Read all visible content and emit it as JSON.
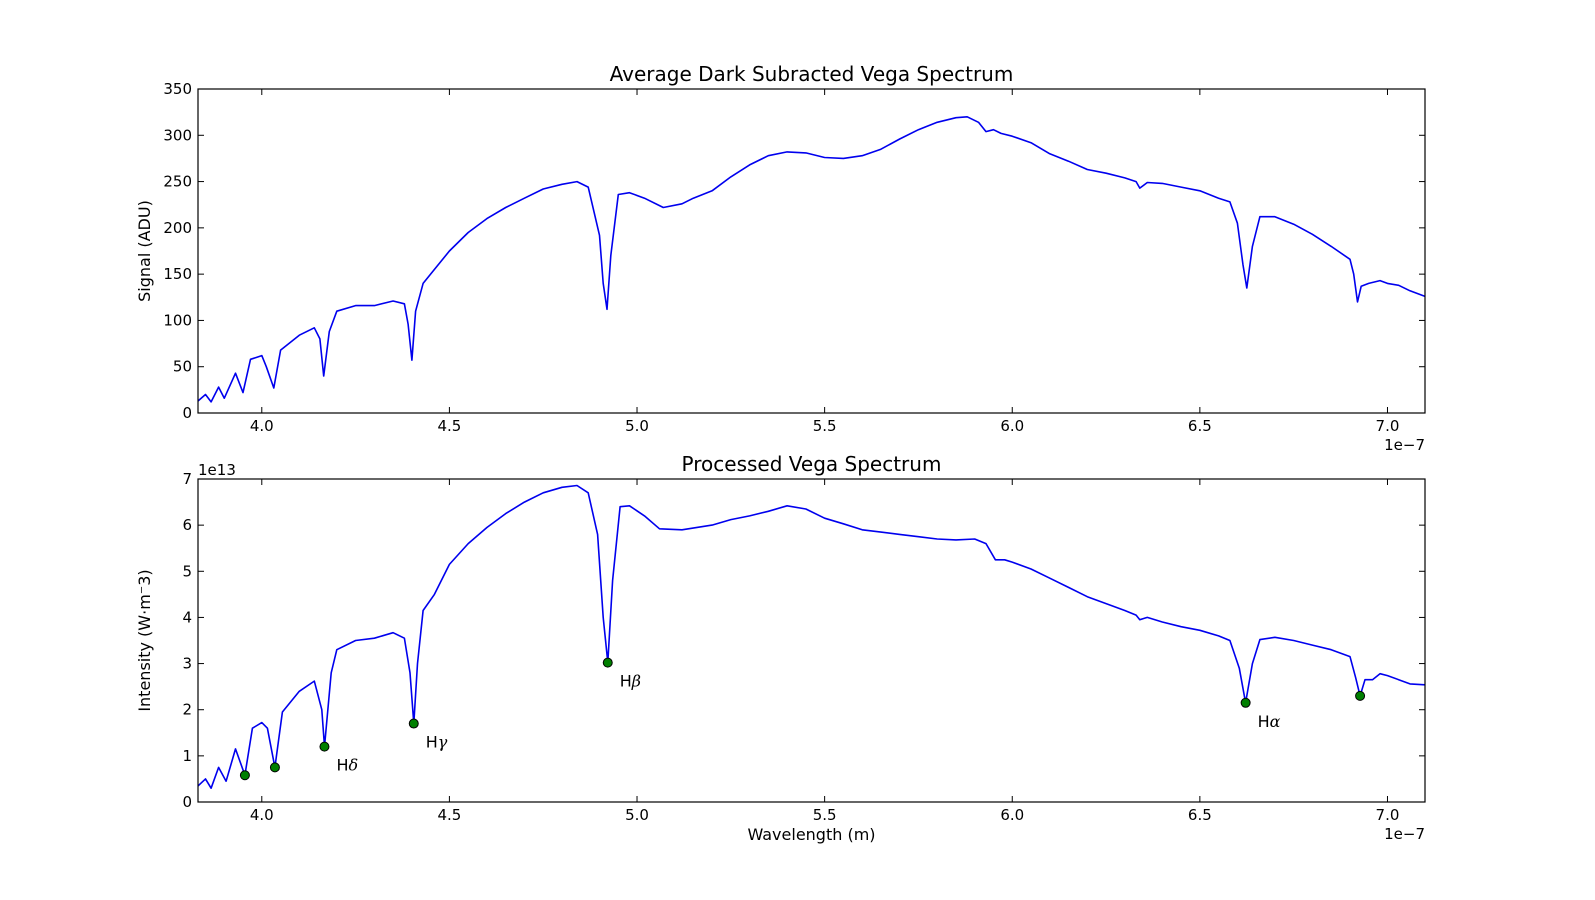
{
  "chart_data": [
    {
      "type": "line",
      "title": "Average Dark Subracted Vega Spectrum",
      "xlabel": "",
      "ylabel": "Signal (ADU)",
      "xlim": [
        3.83e-07,
        7.1e-07
      ],
      "ylim": [
        0,
        350
      ],
      "x_ticks": [
        4e-07,
        4.5e-07,
        5e-07,
        5.5e-07,
        6e-07,
        6.5e-07,
        7e-07
      ],
      "x_tick_labels": [
        "4.0",
        "4.5",
        "5.0",
        "5.5",
        "6.0",
        "6.5",
        "7.0"
      ],
      "x_offset_label": "1e−7",
      "y_ticks": [
        0,
        50,
        100,
        150,
        200,
        250,
        300,
        350
      ],
      "y_tick_labels": [
        "0",
        "50",
        "100",
        "150",
        "200",
        "250",
        "300",
        "350"
      ],
      "y_offset_label": "",
      "grid": false,
      "series": [
        {
          "color": "#0000ee",
          "points": [
            [
              3.83e-07,
              13
            ],
            [
              3.85e-07,
              20
            ],
            [
              3.865e-07,
              12
            ],
            [
              3.885e-07,
              28
            ],
            [
              3.9e-07,
              16
            ],
            [
              3.93e-07,
              43
            ],
            [
              3.95e-07,
              22
            ],
            [
              3.97e-07,
              58
            ],
            [
              3.985e-07,
              60
            ],
            [
              4e-07,
              62
            ],
            [
              4.012e-07,
              50
            ],
            [
              4.032e-07,
              27
            ],
            [
              4.05e-07,
              68
            ],
            [
              4.1e-07,
              84
            ],
            [
              4.14e-07,
              92
            ],
            [
              4.155e-07,
              80
            ],
            [
              4.165e-07,
              40
            ],
            [
              4.18e-07,
              88
            ],
            [
              4.2e-07,
              110
            ],
            [
              4.25e-07,
              116
            ],
            [
              4.3e-07,
              116
            ],
            [
              4.35e-07,
              121
            ],
            [
              4.38e-07,
              118
            ],
            [
              4.39e-07,
              96
            ],
            [
              4.4e-07,
              57
            ],
            [
              4.41e-07,
              110
            ],
            [
              4.43e-07,
              140
            ],
            [
              4.45e-07,
              150
            ],
            [
              4.5e-07,
              175
            ],
            [
              4.55e-07,
              195
            ],
            [
              4.6e-07,
              210
            ],
            [
              4.65e-07,
              222
            ],
            [
              4.7e-07,
              232
            ],
            [
              4.75e-07,
              242
            ],
            [
              4.8e-07,
              247
            ],
            [
              4.84e-07,
              250
            ],
            [
              4.87e-07,
              244
            ],
            [
              4.9e-07,
              192
            ],
            [
              4.91e-07,
              140
            ],
            [
              4.92e-07,
              112
            ],
            [
              4.93e-07,
              170
            ],
            [
              4.95e-07,
              236
            ],
            [
              4.98e-07,
              238
            ],
            [
              5.02e-07,
              232
            ],
            [
              5.07e-07,
              222
            ],
            [
              5.12e-07,
              226
            ],
            [
              5.15e-07,
              232
            ],
            [
              5.2e-07,
              240
            ],
            [
              5.25e-07,
              255
            ],
            [
              5.3e-07,
              268
            ],
            [
              5.35e-07,
              278
            ],
            [
              5.4e-07,
              282
            ],
            [
              5.45e-07,
              281
            ],
            [
              5.5e-07,
              276
            ],
            [
              5.55e-07,
              275
            ],
            [
              5.6e-07,
              278
            ],
            [
              5.65e-07,
              285
            ],
            [
              5.7e-07,
              296
            ],
            [
              5.75e-07,
              306
            ],
            [
              5.8e-07,
              314
            ],
            [
              5.85e-07,
              319
            ],
            [
              5.88e-07,
              320
            ],
            [
              5.91e-07,
              314
            ],
            [
              5.93e-07,
              304
            ],
            [
              5.95e-07,
              306
            ],
            [
              5.97e-07,
              302
            ],
            [
              6e-07,
              299
            ],
            [
              6.05e-07,
              292
            ],
            [
              6.1e-07,
              280
            ],
            [
              6.15e-07,
              272
            ],
            [
              6.2e-07,
              263
            ],
            [
              6.25e-07,
              259
            ],
            [
              6.3e-07,
              254
            ],
            [
              6.33e-07,
              250
            ],
            [
              6.34e-07,
              243
            ],
            [
              6.36e-07,
              249
            ],
            [
              6.4e-07,
              248
            ],
            [
              6.45e-07,
              244
            ],
            [
              6.5e-07,
              240
            ],
            [
              6.55e-07,
              232
            ],
            [
              6.58e-07,
              228
            ],
            [
              6.6e-07,
              205
            ],
            [
              6.615e-07,
              160
            ],
            [
              6.625e-07,
              135
            ],
            [
              6.64e-07,
              180
            ],
            [
              6.66e-07,
              212
            ],
            [
              6.7e-07,
              212
            ],
            [
              6.75e-07,
              204
            ],
            [
              6.8e-07,
              193
            ],
            [
              6.85e-07,
              180
            ],
            [
              6.9e-07,
              166
            ],
            [
              6.91e-07,
              150
            ],
            [
              6.92e-07,
              120
            ],
            [
              6.93e-07,
              137
            ],
            [
              6.95e-07,
              140
            ],
            [
              6.98e-07,
              143
            ],
            [
              7e-07,
              140
            ],
            [
              7.03e-07,
              138
            ],
            [
              7.06e-07,
              132
            ],
            [
              7.1e-07,
              126
            ]
          ]
        }
      ],
      "annotations": []
    },
    {
      "type": "line",
      "title": "Processed Vega Spectrum",
      "xlabel": "Wavelength (m)",
      "ylabel": "Intensity (W·m⁻3)",
      "xlim": [
        3.83e-07,
        7.1e-07
      ],
      "ylim": [
        0,
        7
      ],
      "x_ticks": [
        4e-07,
        4.5e-07,
        5e-07,
        5.5e-07,
        6e-07,
        6.5e-07,
        7e-07
      ],
      "x_tick_labels": [
        "4.0",
        "4.5",
        "5.0",
        "5.5",
        "6.0",
        "6.5",
        "7.0"
      ],
      "x_offset_label": "1e−7",
      "y_ticks": [
        0,
        1,
        2,
        3,
        4,
        5,
        6,
        7
      ],
      "y_tick_labels": [
        "0",
        "1",
        "2",
        "3",
        "4",
        "5",
        "6",
        "7"
      ],
      "y_offset_label": "1e13",
      "grid": false,
      "series": [
        {
          "color": "#0000ee",
          "points": [
            [
              3.83e-07,
              0.35
            ],
            [
              3.85e-07,
              0.5
            ],
            [
              3.865e-07,
              0.3
            ],
            [
              3.885e-07,
              0.75
            ],
            [
              3.905e-07,
              0.45
            ],
            [
              3.93e-07,
              1.15
            ],
            [
              3.955e-07,
              0.58
            ],
            [
              3.975e-07,
              1.6
            ],
            [
              4e-07,
              1.72
            ],
            [
              4.015e-07,
              1.6
            ],
            [
              4.035e-07,
              0.75
            ],
            [
              4.055e-07,
              1.95
            ],
            [
              4.1e-07,
              2.4
            ],
            [
              4.14e-07,
              2.62
            ],
            [
              4.16e-07,
              2.0
            ],
            [
              4.167e-07,
              1.2
            ],
            [
              4.185e-07,
              2.8
            ],
            [
              4.2e-07,
              3.3
            ],
            [
              4.25e-07,
              3.5
            ],
            [
              4.3e-07,
              3.55
            ],
            [
              4.35e-07,
              3.67
            ],
            [
              4.38e-07,
              3.55
            ],
            [
              4.395e-07,
              2.8
            ],
            [
              4.405e-07,
              1.7
            ],
            [
              4.415e-07,
              3.0
            ],
            [
              4.43e-07,
              4.15
            ],
            [
              4.46e-07,
              4.5
            ],
            [
              4.5e-07,
              5.15
            ],
            [
              4.55e-07,
              5.6
            ],
            [
              4.6e-07,
              5.95
            ],
            [
              4.65e-07,
              6.25
            ],
            [
              4.7e-07,
              6.5
            ],
            [
              4.75e-07,
              6.7
            ],
            [
              4.8e-07,
              6.82
            ],
            [
              4.84e-07,
              6.86
            ],
            [
              4.87e-07,
              6.7
            ],
            [
              4.895e-07,
              5.8
            ],
            [
              4.91e-07,
              4.0
            ],
            [
              4.922e-07,
              3.02
            ],
            [
              4.935e-07,
              4.8
            ],
            [
              4.955e-07,
              6.4
            ],
            [
              4.98e-07,
              6.42
            ],
            [
              5.02e-07,
              6.2
            ],
            [
              5.06e-07,
              5.92
            ],
            [
              5.12e-07,
              5.9
            ],
            [
              5.2e-07,
              6.0
            ],
            [
              5.25e-07,
              6.12
            ],
            [
              5.3e-07,
              6.2
            ],
            [
              5.35e-07,
              6.3
            ],
            [
              5.4e-07,
              6.42
            ],
            [
              5.45e-07,
              6.35
            ],
            [
              5.5e-07,
              6.15
            ],
            [
              5.55e-07,
              6.03
            ],
            [
              5.6e-07,
              5.9
            ],
            [
              5.65e-07,
              5.85
            ],
            [
              5.7e-07,
              5.8
            ],
            [
              5.75e-07,
              5.75
            ],
            [
              5.8e-07,
              5.7
            ],
            [
              5.85e-07,
              5.68
            ],
            [
              5.9e-07,
              5.7
            ],
            [
              5.93e-07,
              5.6
            ],
            [
              5.955e-07,
              5.25
            ],
            [
              5.98e-07,
              5.25
            ],
            [
              6e-07,
              5.2
            ],
            [
              6.05e-07,
              5.05
            ],
            [
              6.1e-07,
              4.85
            ],
            [
              6.15e-07,
              4.65
            ],
            [
              6.2e-07,
              4.45
            ],
            [
              6.25e-07,
              4.3
            ],
            [
              6.3e-07,
              4.15
            ],
            [
              6.33e-07,
              4.05
            ],
            [
              6.34e-07,
              3.95
            ],
            [
              6.36e-07,
              4.0
            ],
            [
              6.4e-07,
              3.9
            ],
            [
              6.45e-07,
              3.8
            ],
            [
              6.5e-07,
              3.72
            ],
            [
              6.55e-07,
              3.6
            ],
            [
              6.58e-07,
              3.5
            ],
            [
              6.605e-07,
              2.9
            ],
            [
              6.622e-07,
              2.15
            ],
            [
              6.64e-07,
              3.0
            ],
            [
              6.66e-07,
              3.52
            ],
            [
              6.7e-07,
              3.57
            ],
            [
              6.75e-07,
              3.5
            ],
            [
              6.8e-07,
              3.4
            ],
            [
              6.85e-07,
              3.3
            ],
            [
              6.9e-07,
              3.15
            ],
            [
              6.915e-07,
              2.7
            ],
            [
              6.927e-07,
              2.3
            ],
            [
              6.94e-07,
              2.65
            ],
            [
              6.96e-07,
              2.65
            ],
            [
              6.98e-07,
              2.78
            ],
            [
              7e-07,
              2.74
            ],
            [
              7.03e-07,
              2.65
            ],
            [
              7.06e-07,
              2.56
            ],
            [
              7.1e-07,
              2.54
            ]
          ]
        }
      ],
      "markers": {
        "color": "#007f00",
        "points": [
          [
            3.955e-07,
            0.58
          ],
          [
            4.035e-07,
            0.75
          ],
          [
            4.167e-07,
            1.2
          ],
          [
            4.405e-07,
            1.7
          ],
          [
            4.922e-07,
            3.02
          ],
          [
            6.622e-07,
            2.15
          ],
          [
            6.927e-07,
            2.3
          ]
        ]
      },
      "annotations": [
        {
          "label": "H",
          "greek": "δ",
          "x": 4.167e-07,
          "y": 1.2
        },
        {
          "label": "H",
          "greek": "γ",
          "x": 4.405e-07,
          "y": 1.7
        },
        {
          "label": "H",
          "greek": "β",
          "x": 4.922e-07,
          "y": 3.02
        },
        {
          "label": "H",
          "greek": "α",
          "x": 6.622e-07,
          "y": 2.15
        }
      ]
    }
  ]
}
